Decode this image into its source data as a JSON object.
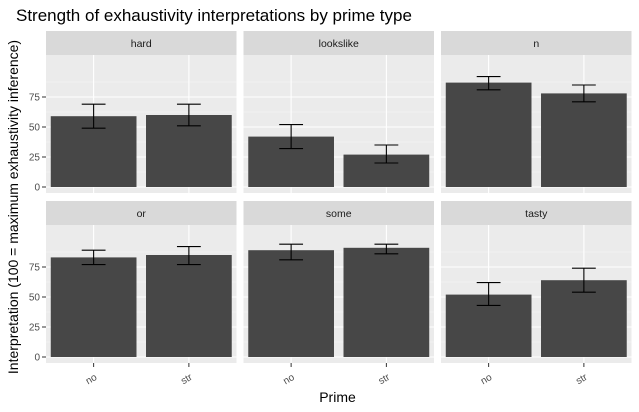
{
  "chart_data": {
    "type": "bar",
    "title": "Strength of exhaustivity interpretations by prime type",
    "xlabel": "Prime",
    "ylabel": "Interpretation (100 = maximum exhaustivity inference)",
    "categories": [
      "no",
      "str"
    ],
    "ylim": [
      -5,
      110
    ],
    "yticks": [
      0,
      25,
      50,
      75
    ],
    "grid": true,
    "legend": "none",
    "colors": {
      "bar": "#474747",
      "panel_bg": "#ebebeb",
      "strip_bg": "#d9d9d9",
      "grid_major": "#ffffff",
      "text": "#000000",
      "axis_text": "#4d4d4d"
    },
    "panels": [
      {
        "label": "hard",
        "values": [
          59,
          60
        ],
        "error_low": [
          49,
          51
        ],
        "error_high": [
          69,
          69
        ]
      },
      {
        "label": "lookslike",
        "values": [
          42,
          27
        ],
        "error_low": [
          32,
          20
        ],
        "error_high": [
          52,
          35
        ]
      },
      {
        "label": "n",
        "values": [
          87,
          78
        ],
        "error_low": [
          81,
          71
        ],
        "error_high": [
          92,
          85
        ]
      },
      {
        "label": "or",
        "values": [
          83,
          85
        ],
        "error_low": [
          77,
          77
        ],
        "error_high": [
          89,
          92
        ]
      },
      {
        "label": "some",
        "values": [
          89,
          91
        ],
        "error_low": [
          81,
          86
        ],
        "error_high": [
          94,
          94
        ]
      },
      {
        "label": "tasty",
        "values": [
          52,
          64
        ],
        "error_low": [
          43,
          54
        ],
        "error_high": [
          62,
          74
        ]
      }
    ]
  }
}
